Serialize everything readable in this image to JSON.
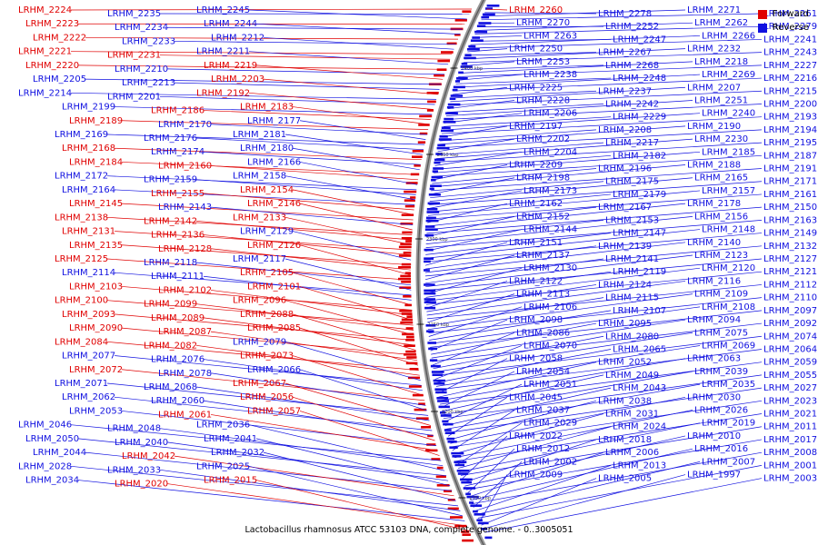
{
  "legend": {
    "forward_label": "Forward",
    "reverse_label": "Reverse",
    "forward_color": "#e00000",
    "reverse_color": "#1010e0"
  },
  "caption": "Lactobacillus rhamnosus ATCC 53103 DNA, complete genome. - 0..3005051",
  "ticks": [
    "2400 kbp",
    "2350 kbp",
    "2300 kbp",
    "2250 kbp",
    "2200 kbp",
    "2150 kbp"
  ],
  "left_labels": [
    [
      "LRHM_2224",
      "f"
    ],
    [
      "LRHM_2235",
      "r"
    ],
    [
      "LRHM_2245",
      "r"
    ],
    [
      "LRHM_2223",
      "f"
    ],
    [
      "LRHM_2234",
      "r"
    ],
    [
      "LRHM_2244",
      "r"
    ],
    [
      "LRHM_2222",
      "f"
    ],
    [
      "LRHM_2233",
      "r"
    ],
    [
      "LRHM_2212",
      "r"
    ],
    [
      "LRHM_2221",
      "f"
    ],
    [
      "LRHM_2231",
      "f"
    ],
    [
      "LRHM_2211",
      "r"
    ],
    [
      "LRHM_2220",
      "f"
    ],
    [
      "LRHM_2210",
      "r"
    ],
    [
      "LRHM_2219",
      "f"
    ],
    [
      "LRHM_2205",
      "r"
    ],
    [
      "LRHM_2213",
      "r"
    ],
    [
      "LRHM_2203",
      "f"
    ],
    [
      "LRHM_2214",
      "r"
    ],
    [
      "LRHM_2201",
      "r"
    ],
    [
      "LRHM_2192",
      "f"
    ],
    [
      "LRHM_2199",
      "r"
    ],
    [
      "LRHM_2186",
      "f"
    ],
    [
      "LRHM_2183",
      "f"
    ],
    [
      "LRHM_2189",
      "f"
    ],
    [
      "LRHM_2170",
      "r"
    ],
    [
      "LRHM_2177",
      "r"
    ],
    [
      "LRHM_2169",
      "r"
    ],
    [
      "LRHM_2176",
      "r"
    ],
    [
      "LRHM_2181",
      "r"
    ],
    [
      "LRHM_2168",
      "f"
    ],
    [
      "LRHM_2174",
      "r"
    ],
    [
      "LRHM_2180",
      "r"
    ],
    [
      "LRHM_2184",
      "f"
    ],
    [
      "LRHM_2160",
      "f"
    ],
    [
      "LRHM_2166",
      "r"
    ],
    [
      "LRHM_2172",
      "r"
    ],
    [
      "LRHM_2159",
      "r"
    ],
    [
      "LRHM_2158",
      "r"
    ],
    [
      "LRHM_2164",
      "r"
    ],
    [
      "LRHM_2155",
      "f"
    ],
    [
      "LRHM_2154",
      "f"
    ],
    [
      "LRHM_2145",
      "f"
    ],
    [
      "LRHM_2143",
      "r"
    ],
    [
      "LRHM_2146",
      "f"
    ],
    [
      "LRHM_2138",
      "f"
    ],
    [
      "LRHM_2142",
      "f"
    ],
    [
      "LRHM_2133",
      "f"
    ],
    [
      "LRHM_2131",
      "f"
    ],
    [
      "LRHM_2136",
      "f"
    ],
    [
      "LRHM_2129",
      "r"
    ],
    [
      "LRHM_2135",
      "f"
    ],
    [
      "LRHM_2128",
      "f"
    ],
    [
      "LRHM_2126",
      "f"
    ],
    [
      "LRHM_2125",
      "f"
    ],
    [
      "LRHM_2118",
      "r"
    ],
    [
      "LRHM_2117",
      "r"
    ],
    [
      "LRHM_2114",
      "r"
    ],
    [
      "LRHM_2111",
      "r"
    ],
    [
      "LRHM_2105",
      "f"
    ],
    [
      "LRHM_2103",
      "f"
    ],
    [
      "LRHM_2102",
      "f"
    ],
    [
      "LRHM_2101",
      "f"
    ],
    [
      "LRHM_2100",
      "f"
    ],
    [
      "LRHM_2099",
      "f"
    ],
    [
      "LRHM_2096",
      "f"
    ],
    [
      "LRHM_2093",
      "f"
    ],
    [
      "LRHM_2089",
      "f"
    ],
    [
      "LRHM_2088",
      "f"
    ],
    [
      "LRHM_2090",
      "f"
    ],
    [
      "LRHM_2087",
      "f"
    ],
    [
      "LRHM_2085",
      "f"
    ],
    [
      "LRHM_2084",
      "f"
    ],
    [
      "LRHM_2082",
      "f"
    ],
    [
      "LRHM_2079",
      "r"
    ],
    [
      "LRHM_2077",
      "r"
    ],
    [
      "LRHM_2076",
      "r"
    ],
    [
      "LRHM_2073",
      "f"
    ],
    [
      "LRHM_2072",
      "f"
    ],
    [
      "LRHM_2078",
      "r"
    ],
    [
      "LRHM_2066",
      "r"
    ],
    [
      "LRHM_2071",
      "r"
    ],
    [
      "LRHM_2068",
      "r"
    ],
    [
      "LRHM_2067",
      "f"
    ],
    [
      "LRHM_2062",
      "r"
    ],
    [
      "LRHM_2060",
      "r"
    ],
    [
      "LRHM_2056",
      "f"
    ],
    [
      "LRHM_2053",
      "r"
    ],
    [
      "LRHM_2061",
      "f"
    ],
    [
      "LRHM_2057",
      "f"
    ],
    [
      "LRHM_2046",
      "r"
    ],
    [
      "LRHM_2048",
      "r"
    ],
    [
      "LRHM_2036",
      "r"
    ],
    [
      "LRHM_2050",
      "r"
    ],
    [
      "LRHM_2040",
      "r"
    ],
    [
      "LRHM_2041",
      "r"
    ],
    [
      "LRHM_2044",
      "r"
    ],
    [
      "LRHM_2042",
      "f"
    ],
    [
      "LRHM_2032",
      "r"
    ],
    [
      "LRHM_2028",
      "r"
    ],
    [
      "LRHM_2033",
      "r"
    ],
    [
      "LRHM_2025",
      "r"
    ],
    [
      "LRHM_2034",
      "r"
    ],
    [
      "LRHM_2020",
      "f"
    ],
    [
      "LRHM_2015",
      "f"
    ]
  ],
  "right_labels": [
    [
      "LRHM_2260",
      "f"
    ],
    [
      "LRHM_2278",
      "r"
    ],
    [
      "LRHM_2271",
      "r"
    ],
    [
      "LRHM_2261",
      "r"
    ],
    [
      "LRHM_2270",
      "r"
    ],
    [
      "LRHM_2252",
      "r"
    ],
    [
      "LRHM_2262",
      "r"
    ],
    [
      "LRHM_2279",
      "r"
    ],
    [
      "LRHM_2263",
      "r"
    ],
    [
      "LRHM_2247",
      "r"
    ],
    [
      "LRHM_2266",
      "r"
    ],
    [
      "LRHM_2241",
      "r"
    ],
    [
      "LRHM_2250",
      "r"
    ],
    [
      "LRHM_2267",
      "r"
    ],
    [
      "LRHM_2232",
      "r"
    ],
    [
      "LRHM_2243",
      "r"
    ],
    [
      "LRHM_2253",
      "r"
    ],
    [
      "LRHM_2268",
      "r"
    ],
    [
      "LRHM_2218",
      "r"
    ],
    [
      "LRHM_2227",
      "r"
    ],
    [
      "LRHM_2238",
      "r"
    ],
    [
      "LRHM_2248",
      "r"
    ],
    [
      "LRHM_2269",
      "r"
    ],
    [
      "LRHM_2216",
      "r"
    ],
    [
      "LRHM_2225",
      "r"
    ],
    [
      "LRHM_2237",
      "r"
    ],
    [
      "LRHM_2207",
      "r"
    ],
    [
      "LRHM_2215",
      "r"
    ],
    [
      "LRHM_2228",
      "r"
    ],
    [
      "LRHM_2242",
      "r"
    ],
    [
      "LRHM_2251",
      "r"
    ],
    [
      "LRHM_2200",
      "r"
    ],
    [
      "LRHM_2206",
      "r"
    ],
    [
      "LRHM_2229",
      "r"
    ],
    [
      "LRHM_2240",
      "r"
    ],
    [
      "LRHM_2193",
      "r"
    ],
    [
      "LRHM_2197",
      "r"
    ],
    [
      "LRHM_2208",
      "r"
    ],
    [
      "LRHM_2190",
      "r"
    ],
    [
      "LRHM_2194",
      "r"
    ],
    [
      "LRHM_2202",
      "r"
    ],
    [
      "LRHM_2217",
      "r"
    ],
    [
      "LRHM_2230",
      "r"
    ],
    [
      "LRHM_2195",
      "r"
    ],
    [
      "LRHM_2204",
      "r"
    ],
    [
      "LRHM_2182",
      "r"
    ],
    [
      "LRHM_2185",
      "r"
    ],
    [
      "LRHM_2187",
      "r"
    ],
    [
      "LRHM_2209",
      "r"
    ],
    [
      "LRHM_2196",
      "r"
    ],
    [
      "LRHM_2188",
      "r"
    ],
    [
      "LRHM_2191",
      "r"
    ],
    [
      "LRHM_2198",
      "r"
    ],
    [
      "LRHM_2175",
      "r"
    ],
    [
      "LRHM_2165",
      "r"
    ],
    [
      "LRHM_2171",
      "r"
    ],
    [
      "LRHM_2173",
      "r"
    ],
    [
      "LRHM_2179",
      "r"
    ],
    [
      "LRHM_2157",
      "r"
    ],
    [
      "LRHM_2161",
      "r"
    ],
    [
      "LRHM_2162",
      "r"
    ],
    [
      "LRHM_2167",
      "r"
    ],
    [
      "LRHM_2178",
      "r"
    ],
    [
      "LRHM_2150",
      "r"
    ],
    [
      "LRHM_2152",
      "r"
    ],
    [
      "LRHM_2153",
      "r"
    ],
    [
      "LRHM_2156",
      "r"
    ],
    [
      "LRHM_2163",
      "r"
    ],
    [
      "LRHM_2144",
      "r"
    ],
    [
      "LRHM_2147",
      "r"
    ],
    [
      "LRHM_2148",
      "r"
    ],
    [
      "LRHM_2149",
      "r"
    ],
    [
      "LRHM_2151",
      "r"
    ],
    [
      "LRHM_2139",
      "r"
    ],
    [
      "LRHM_2140",
      "r"
    ],
    [
      "LRHM_2132",
      "r"
    ],
    [
      "LRHM_2137",
      "r"
    ],
    [
      "LRHM_2141",
      "r"
    ],
    [
      "LRHM_2123",
      "r"
    ],
    [
      "LRHM_2127",
      "r"
    ],
    [
      "LRHM_2130",
      "r"
    ],
    [
      "LRHM_2119",
      "r"
    ],
    [
      "LRHM_2120",
      "r"
    ],
    [
      "LRHM_2121",
      "r"
    ],
    [
      "LRHM_2122",
      "r"
    ],
    [
      "LRHM_2124",
      "r"
    ],
    [
      "LRHM_2116",
      "r"
    ],
    [
      "LRHM_2112",
      "r"
    ],
    [
      "LRHM_2113",
      "r"
    ],
    [
      "LRHM_2115",
      "r"
    ],
    [
      "LRHM_2109",
      "r"
    ],
    [
      "LRHM_2110",
      "r"
    ],
    [
      "LRHM_2106",
      "r"
    ],
    [
      "LRHM_2107",
      "r"
    ],
    [
      "LRHM_2108",
      "r"
    ],
    [
      "LRHM_2097",
      "r"
    ],
    [
      "LRHM_2098",
      "r"
    ],
    [
      "LRHM_2095",
      "r"
    ],
    [
      "LRHM_2094",
      "r"
    ],
    [
      "LRHM_2092",
      "r"
    ],
    [
      "LRHM_2086",
      "r"
    ],
    [
      "LRHM_2080",
      "r"
    ],
    [
      "LRHM_2075",
      "r"
    ],
    [
      "LRHM_2074",
      "r"
    ],
    [
      "LRHM_2070",
      "r"
    ],
    [
      "LRHM_2065",
      "r"
    ],
    [
      "LRHM_2069",
      "r"
    ],
    [
      "LRHM_2064",
      "r"
    ],
    [
      "LRHM_2058",
      "r"
    ],
    [
      "LRHM_2052",
      "r"
    ],
    [
      "LRHM_2063",
      "r"
    ],
    [
      "LRHM_2059",
      "r"
    ],
    [
      "LRHM_2054",
      "r"
    ],
    [
      "LRHM_2049",
      "r"
    ],
    [
      "LRHM_2039",
      "r"
    ],
    [
      "LRHM_2055",
      "r"
    ],
    [
      "LRHM_2051",
      "r"
    ],
    [
      "LRHM_2043",
      "r"
    ],
    [
      "LRHM_2035",
      "r"
    ],
    [
      "LRHM_2027",
      "r"
    ],
    [
      "LRHM_2045",
      "r"
    ],
    [
      "LRHM_2038",
      "r"
    ],
    [
      "LRHM_2030",
      "r"
    ],
    [
      "LRHM_2023",
      "r"
    ],
    [
      "LRHM_2037",
      "r"
    ],
    [
      "LRHM_2031",
      "r"
    ],
    [
      "LRHM_2026",
      "r"
    ],
    [
      "LRHM_2021",
      "r"
    ],
    [
      "LRHM_2029",
      "r"
    ],
    [
      "LRHM_2024",
      "r"
    ],
    [
      "LRHM_2019",
      "r"
    ],
    [
      "LRHM_2011",
      "r"
    ],
    [
      "LRHM_2022",
      "r"
    ],
    [
      "LRHM_2018",
      "r"
    ],
    [
      "LRHM_2010",
      "r"
    ],
    [
      "LRHM_2017",
      "r"
    ],
    [
      "LRHM_2012",
      "r"
    ],
    [
      "LRHM_2006",
      "r"
    ],
    [
      "LRHM_2016",
      "r"
    ],
    [
      "LRHM_2008",
      "r"
    ],
    [
      "LRHM_2002",
      "r"
    ],
    [
      "LRHM_2013",
      "r"
    ],
    [
      "LRHM_2007",
      "r"
    ],
    [
      "LRHM_2001",
      "r"
    ],
    [
      "LRHM_2009",
      "r"
    ],
    [
      "LRHM_2005",
      "r"
    ],
    [
      "LRHM_1997",
      "r"
    ],
    [
      "LRHM_2003",
      "r"
    ]
  ]
}
